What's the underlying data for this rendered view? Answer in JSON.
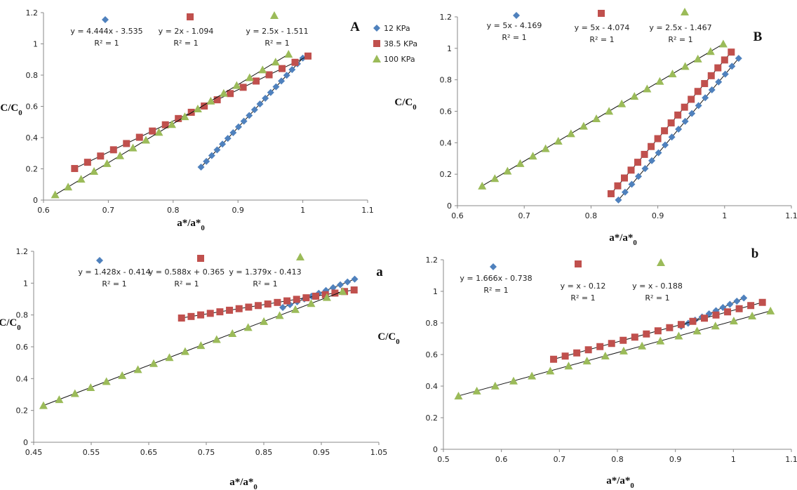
{
  "colors": {
    "blue": "#4f81bd",
    "red": "#c0504d",
    "green": "#9bbb59",
    "fit": "#111111",
    "axis": "#888888"
  },
  "chart_data": [
    {
      "type": "scatter",
      "title": "A",
      "xlabel": "a*/a*0",
      "ylabel": "C/C0",
      "xlim": [
        0.6,
        1.1
      ],
      "ylim": [
        0,
        1.2
      ],
      "xticks": [
        "0.6",
        "0.7",
        "0.8",
        "0.9",
        "1",
        "1.1"
      ],
      "yticks": [
        "0",
        "0.2",
        "0.4",
        "0.6",
        "0.8",
        "1",
        "1.2"
      ],
      "legend": [
        "12 KPa",
        "38.5 KPa",
        "100 KPa"
      ],
      "series": [
        {
          "name": "12 KPa",
          "marker": "diamond",
          "color": "#4f81bd",
          "equation": "y = 4.444x - 3.535",
          "r2": "R² = 1",
          "slope": 4.444,
          "intercept": -3.535,
          "x_start": 0.843,
          "x_end": 1.0,
          "n": 20
        },
        {
          "name": "38.5 KPa",
          "marker": "square",
          "color": "#c0504d",
          "equation": "y = 2x - 1.094",
          "r2": "R² = 1",
          "slope": 2.0,
          "intercept": -1.094,
          "x_start": 0.648,
          "x_end": 1.008,
          "n": 19
        },
        {
          "name": "100 KPa",
          "marker": "triangle",
          "color": "#9bbb59",
          "equation": "y = 2.5x - 1.511",
          "r2": "R² = 1",
          "slope": 2.5,
          "intercept": -1.511,
          "x_start": 0.618,
          "x_end": 0.978,
          "n": 19
        }
      ]
    },
    {
      "type": "scatter",
      "title": "B",
      "xlabel": "a*/a*0",
      "ylabel": "C/C0",
      "xlim": [
        0.6,
        1.1
      ],
      "ylim": [
        0,
        1.2
      ],
      "xticks": [
        "0.6",
        "0.7",
        "0.8",
        "0.9",
        "1",
        "1.1"
      ],
      "yticks": [
        "0",
        "0.2",
        "0.4",
        "0.6",
        "0.8",
        "1",
        "1.2"
      ],
      "legend": [],
      "series": [
        {
          "name": "",
          "marker": "diamond",
          "color": "#4f81bd",
          "equation": "y = 5x - 4.169",
          "r2": "R² = 1",
          "slope": 5.0,
          "intercept": -4.169,
          "x_start": 0.841,
          "x_end": 1.021,
          "n": 19
        },
        {
          "name": "",
          "marker": "square",
          "color": "#c0504d",
          "equation": "y = 5x - 4.074",
          "r2": "R² = 1",
          "slope": 5.0,
          "intercept": -4.074,
          "x_start": 0.83,
          "x_end": 1.01,
          "n": 19
        },
        {
          "name": "",
          "marker": "triangle",
          "color": "#9bbb59",
          "equation": "y = 2.5x - 1.467",
          "r2": "R² = 1",
          "slope": 2.5,
          "intercept": -1.467,
          "x_start": 0.637,
          "x_end": 0.998,
          "n": 20
        }
      ]
    },
    {
      "type": "scatter",
      "title": "a",
      "xlabel": "a*/a*0",
      "ylabel": "C/C0",
      "xlim": [
        0.45,
        1.05
      ],
      "ylim": [
        0,
        1.2
      ],
      "xticks": [
        "0.45",
        "0.55",
        "0.65",
        "0.75",
        "0.85",
        "0.95",
        "1.05"
      ],
      "yticks": [
        "0",
        "0.2",
        "0.4",
        "0.6",
        "0.8",
        "1",
        "1.2"
      ],
      "legend": [],
      "series": [
        {
          "name": "",
          "marker": "diamond",
          "color": "#4f81bd",
          "equation": "y = 1.428x - 0.414",
          "r2": "R² = 1",
          "slope": 1.428,
          "intercept": -0.414,
          "x_start": 0.883,
          "x_end": 1.008,
          "n": 11
        },
        {
          "name": "",
          "marker": "square",
          "color": "#c0504d",
          "equation": "y = 0.588x + 0.365",
          "r2": "R² = 1",
          "slope": 0.588,
          "intercept": 0.365,
          "x_start": 0.707,
          "x_end": 1.007,
          "n": 19
        },
        {
          "name": "",
          "marker": "triangle",
          "color": "#9bbb59",
          "equation": "y = 1.379x - 0.413",
          "r2": "R² = 1",
          "slope": 1.379,
          "intercept": -0.413,
          "x_start": 0.467,
          "x_end": 0.987,
          "n": 20
        }
      ]
    },
    {
      "type": "scatter",
      "title": "b",
      "xlabel": "a*/a*0",
      "ylabel": "C/C0",
      "xlim": [
        0.5,
        1.1
      ],
      "ylim": [
        0,
        1.2
      ],
      "xticks": [
        "0.5",
        "0.6",
        "0.7",
        "0.8",
        "0.9",
        "1",
        "1.1"
      ],
      "yticks": [
        "0",
        "0.2",
        "0.4",
        "0.6",
        "0.8",
        "1",
        "1.2"
      ],
      "legend": [],
      "series": [
        {
          "name": "",
          "marker": "diamond",
          "color": "#4f81bd",
          "equation": "y = 1.666x - 0.738",
          "r2": "R² = 1",
          "slope": 1.666,
          "intercept": -0.738,
          "x_start": 0.91,
          "x_end": 1.018,
          "n": 10
        },
        {
          "name": "",
          "marker": "square",
          "color": "#c0504d",
          "equation": "y = x - 0.12",
          "r2": "R² = 1",
          "slope": 1.0,
          "intercept": -0.12,
          "x_start": 0.69,
          "x_end": 1.05,
          "n": 19
        },
        {
          "name": "",
          "marker": "triangle",
          "color": "#9bbb59",
          "equation": "y = x - 0.188",
          "r2": "R² = 1",
          "slope": 1.0,
          "intercept": -0.188,
          "x_start": 0.526,
          "x_end": 1.064,
          "n": 18
        }
      ]
    }
  ]
}
